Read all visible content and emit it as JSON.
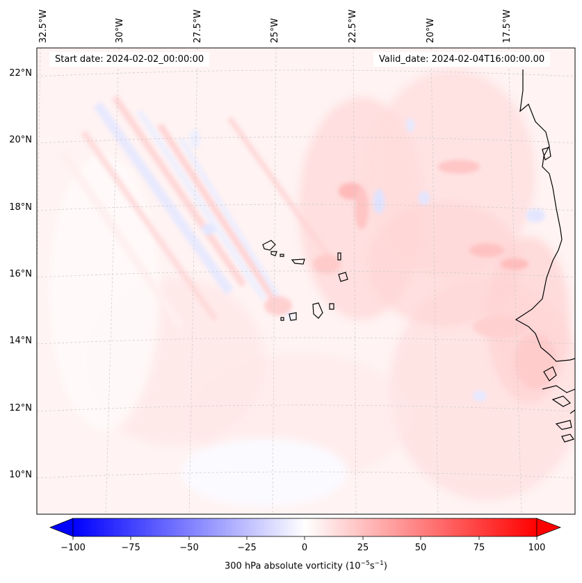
{
  "map": {
    "start_date": "Start date: 2024-02-02_00:00:00",
    "valid_date": "Valid_date: 2024-02-04T16:00:00.00",
    "lon_labels": [
      "32.5°W",
      "30°W",
      "27.5°W",
      "25°W",
      "22.5°W",
      "20°W",
      "17.5°W"
    ],
    "lat_labels": [
      "22°N",
      "20°N",
      "18°N",
      "16°N",
      "14°N",
      "12°N",
      "10°N"
    ],
    "field": "vorticity-contourf",
    "colors": {
      "min": "#0000ff",
      "mid": "#ffffff",
      "max": "#ff0000",
      "coast": "#000000",
      "grid": "#bbbbbb"
    }
  },
  "colorbar": {
    "ticks": [
      "−100",
      "−75",
      "−50",
      "−25",
      "0",
      "25",
      "50",
      "75",
      "100"
    ],
    "label_prefix": "300 hPa absolute vorticity (10",
    "label_exp1": "−5",
    "label_mid": "s",
    "label_exp2": "−1",
    "label_suffix": ")"
  }
}
